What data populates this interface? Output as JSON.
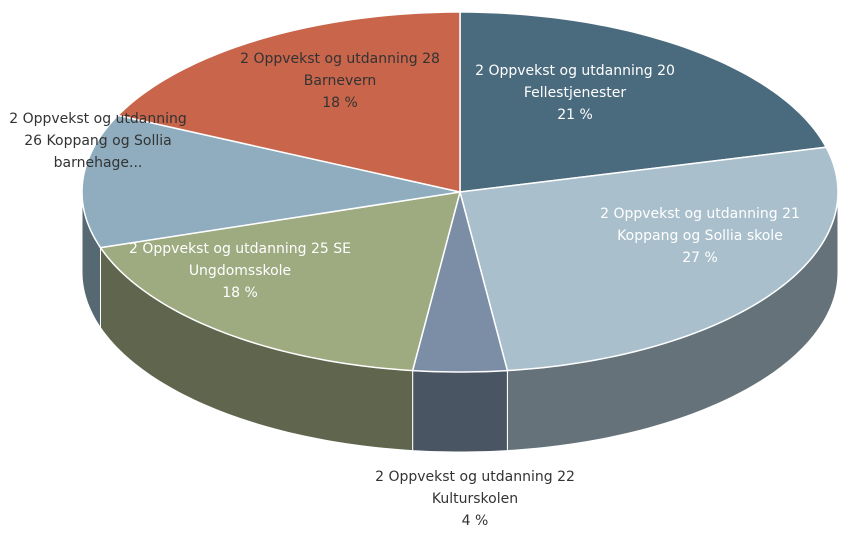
{
  "chart_data": {
    "type": "pie3d",
    "categories": [
      "2 Oppvekst og utdanning 20 Fellestjenester",
      "2 Oppvekst og utdanning 21 Koppang og Sollia skole",
      "2 Oppvekst og utdanning 22 Kulturskolen",
      "2 Oppvekst og utdanning 25 SE Ungdomsskole",
      "2 Oppvekst og utdanning 26 Koppang og Sollia barnehage...",
      "2 Oppvekst og utdanning 28 Barnevern"
    ],
    "values": [
      21,
      27,
      4,
      18,
      12,
      18
    ],
    "value_labels": [
      "21 %",
      "27 %",
      "4 %",
      "18 %",
      null,
      "18 %"
    ],
    "colors": [
      "#4a6a7e",
      "#a9bfcc",
      "#7b8ea6",
      "#9eaa80",
      "#8fadbf",
      "#c8654a"
    ]
  }
}
